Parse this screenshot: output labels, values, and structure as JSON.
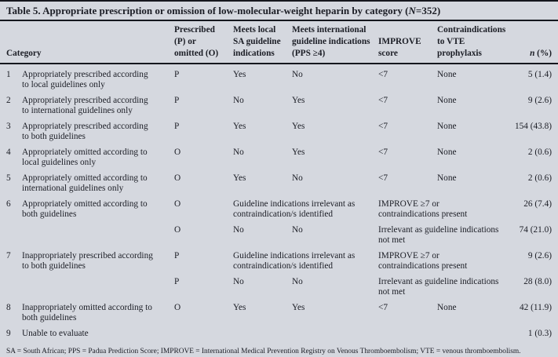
{
  "panel": {
    "title_prefix": "Table 5. Appropriate prescription or omission of low-molecular-weight heparin by category (",
    "title_italic": "N",
    "title_suffix": "=352)"
  },
  "table": {
    "headers": [
      {
        "text": "Category",
        "span": 2
      },
      {
        "text": "Prescribed\n(P) or\nomitted (O)"
      },
      {
        "text": "Meets local\nSA guideline\nindications"
      },
      {
        "text": "Meets international\nguideline indications\n(PPS ≥4)"
      },
      {
        "text": "IMPROVE\nscore"
      },
      {
        "text": "Contraindications\nto VTE prophylaxis"
      },
      {
        "italic": "n",
        "text": " (%)",
        "num": true
      }
    ],
    "rows": [
      [
        "1",
        "Appropriately prescribed according\nto local guidelines only",
        "P",
        "Yes",
        "No",
        "<7",
        "None",
        "5 (1.4)"
      ],
      [
        "2",
        "Appropriately prescribed according\nto international guidelines only",
        "P",
        "No",
        "Yes",
        "<7",
        "None",
        "9 (2.6)"
      ],
      [
        "3",
        "Appropriately prescribed according\nto both guidelines",
        "P",
        "Yes",
        "Yes",
        "<7",
        "None",
        "154 (43.8)"
      ],
      [
        "4",
        "Appropriately omitted according to\nlocal guidelines only",
        "O",
        "No",
        "Yes",
        "<7",
        "None",
        "2 (0.6)"
      ],
      [
        "5",
        "Appropriately omitted according to\ninternational guidelines only",
        "O",
        "Yes",
        "No",
        "<7",
        "None",
        "2 (0.6)"
      ],
      [
        "6",
        "Appropriately omitted according to\nboth guidelines",
        "O",
        {
          "text": "Guideline indications irrelevant as\ncontraindication/s identified",
          "span": 2
        },
        {
          "text": "IMPROVE ≥7 or\ncontraindications present",
          "span": 2
        },
        "26 (7.4)"
      ],
      [
        "",
        "",
        "O",
        "No",
        "No",
        {
          "text": "Irrelevant as guideline indications\nnot met",
          "span": 2
        },
        "74 (21.0)"
      ],
      [
        "7",
        "Inappropriately prescribed according\nto both guidelines",
        "P",
        {
          "text": "Guideline indications irrelevant as\ncontraindication/s identified",
          "span": 2
        },
        {
          "text": "IMPROVE ≥7 or\ncontraindications present",
          "span": 2
        },
        "9 (2.6)"
      ],
      [
        "",
        "",
        "P",
        "No",
        "No",
        {
          "text": "Irrelevant as guideline indications\nnot met",
          "span": 2
        },
        "28 (8.0)"
      ],
      [
        "8",
        "Inappropriately omitted according to\nboth guidelines",
        "O",
        "Yes",
        "Yes",
        "<7",
        "None",
        "42 (11.9)"
      ],
      [
        "9",
        "Unable to evaluate",
        "",
        "",
        "",
        "",
        "",
        "1 (0.3)"
      ]
    ]
  },
  "footnote": "SA = South African; PPS = Padua Prediction Score; IMPROVE = International Medical Prevention Registry on Venous Thromboembolism; VTE = venous thromboembolism."
}
